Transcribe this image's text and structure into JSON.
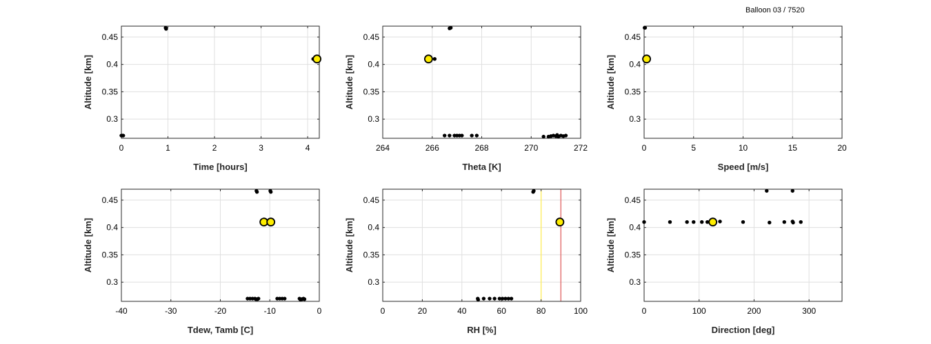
{
  "figure_title": "Balloon 03 / 7520",
  "chart_data": [
    {
      "type": "scatter",
      "xlabel": "Time [hours]",
      "ylabel": "Altitude [km]",
      "xlim": [
        0,
        4.25
      ],
      "ylim": [
        0.265,
        0.47
      ],
      "xticks": [
        0,
        1,
        2,
        3,
        4
      ],
      "yticks": [
        0.3,
        0.35,
        0.4,
        0.45
      ],
      "grid": true,
      "points": [
        [
          0.0,
          0.27
        ],
        [
          0.02,
          0.27
        ],
        [
          0.04,
          0.27
        ],
        [
          0.95,
          0.467
        ],
        [
          0.96,
          0.465
        ],
        [
          4.12,
          0.41
        ],
        [
          4.15,
          0.41
        ]
      ],
      "highlight": [
        [
          4.2,
          0.41
        ]
      ],
      "highlight_color": "#ffee00"
    },
    {
      "type": "scatter",
      "xlabel": "Theta [K]",
      "ylabel": "Altitude [km]",
      "xlim": [
        264,
        272
      ],
      "ylim": [
        0.265,
        0.47
      ],
      "xticks": [
        264,
        266,
        268,
        270,
        272
      ],
      "yticks": [
        0.3,
        0.35,
        0.4,
        0.45
      ],
      "grid": true,
      "points": [
        [
          265.9,
          0.41
        ],
        [
          266.1,
          0.41
        ],
        [
          266.7,
          0.466
        ],
        [
          266.75,
          0.467
        ],
        [
          266.5,
          0.27
        ],
        [
          266.7,
          0.27
        ],
        [
          266.9,
          0.27
        ],
        [
          267.0,
          0.27
        ],
        [
          267.1,
          0.27
        ],
        [
          267.2,
          0.27
        ],
        [
          267.6,
          0.27
        ],
        [
          267.8,
          0.27
        ],
        [
          270.5,
          0.268
        ],
        [
          270.7,
          0.268
        ],
        [
          270.8,
          0.269
        ],
        [
          270.9,
          0.27
        ],
        [
          271.0,
          0.269
        ],
        [
          271.05,
          0.271
        ],
        [
          271.1,
          0.268
        ],
        [
          271.2,
          0.27
        ],
        [
          271.3,
          0.269
        ],
        [
          271.4,
          0.27
        ]
      ],
      "highlight": [
        [
          265.85,
          0.41
        ]
      ],
      "highlight_color": "#ffee00"
    },
    {
      "type": "scatter",
      "xlabel": "Speed [m/s]",
      "ylabel": "Altitude [km]",
      "xlim": [
        0,
        20
      ],
      "ylim": [
        0.265,
        0.47
      ],
      "xticks": [
        0,
        5,
        10,
        15,
        20
      ],
      "yticks": [
        0.3,
        0.35,
        0.4,
        0.45
      ],
      "grid": true,
      "points": [
        [
          0.05,
          0.467
        ],
        [
          0.1,
          0.467
        ],
        [
          0.0,
          0.41
        ],
        [
          0.1,
          0.41
        ]
      ],
      "highlight": [
        [
          0.25,
          0.41
        ]
      ],
      "highlight_color": "#ffee00"
    },
    {
      "type": "scatter",
      "xlabel": "Tdew, Tamb [C]",
      "ylabel": "Altitude [km]",
      "xlim": [
        -40,
        0
      ],
      "ylim": [
        0.265,
        0.47
      ],
      "xticks": [
        -40,
        -30,
        -20,
        -10,
        0
      ],
      "yticks": [
        0.3,
        0.35,
        0.4,
        0.45
      ],
      "grid": true,
      "points": [
        [
          -12.7,
          0.467
        ],
        [
          -12.6,
          0.465
        ],
        [
          -9.9,
          0.467
        ],
        [
          -9.8,
          0.465
        ],
        [
          -14.5,
          0.27
        ],
        [
          -14.0,
          0.27
        ],
        [
          -13.5,
          0.27
        ],
        [
          -13.0,
          0.27
        ],
        [
          -12.8,
          0.269
        ],
        [
          -12.5,
          0.269
        ],
        [
          -12.3,
          0.27
        ],
        [
          -8.5,
          0.27
        ],
        [
          -8.0,
          0.27
        ],
        [
          -7.5,
          0.27
        ],
        [
          -7.0,
          0.27
        ],
        [
          -4.0,
          0.27
        ],
        [
          -3.8,
          0.268
        ],
        [
          -3.5,
          0.269
        ],
        [
          -3.2,
          0.27
        ],
        [
          -3.0,
          0.269
        ]
      ],
      "highlight": [
        [
          -11.2,
          0.41
        ],
        [
          -9.8,
          0.41
        ]
      ],
      "highlight_color": "#ffee00"
    },
    {
      "type": "scatter",
      "xlabel": "RH [%]",
      "ylabel": "Altitude [km]",
      "xlim": [
        0,
        100
      ],
      "ylim": [
        0.265,
        0.47
      ],
      "xticks": [
        0,
        20,
        40,
        60,
        80,
        100
      ],
      "yticks": [
        0.3,
        0.35,
        0.4,
        0.45
      ],
      "grid": true,
      "vlines": [
        {
          "x": 80,
          "color": "#ffee55"
        },
        {
          "x": 90,
          "color": "#e06060"
        }
      ],
      "points": [
        [
          76.0,
          0.465
        ],
        [
          76.3,
          0.467
        ],
        [
          48.0,
          0.27
        ],
        [
          48.2,
          0.268
        ],
        [
          51.0,
          0.27
        ],
        [
          54.0,
          0.27
        ],
        [
          56.5,
          0.27
        ],
        [
          59.0,
          0.27
        ],
        [
          60.5,
          0.27
        ],
        [
          62.0,
          0.27
        ],
        [
          63.5,
          0.27
        ],
        [
          65.0,
          0.27
        ]
      ],
      "highlight": [
        [
          89.5,
          0.41
        ]
      ],
      "highlight_color": "#ffee00"
    },
    {
      "type": "scatter",
      "xlabel": "Direction [deg]",
      "ylabel": "Altitude [km]",
      "xlim": [
        0,
        360
      ],
      "ylim": [
        0.265,
        0.47
      ],
      "xticks": [
        0,
        100,
        200,
        300
      ],
      "yticks": [
        0.3,
        0.35,
        0.4,
        0.45
      ],
      "grid": true,
      "points": [
        [
          0,
          0.41
        ],
        [
          47,
          0.41
        ],
        [
          78,
          0.41
        ],
        [
          90,
          0.41
        ],
        [
          105,
          0.41
        ],
        [
          115,
          0.41
        ],
        [
          138,
          0.411
        ],
        [
          180,
          0.41
        ],
        [
          228,
          0.409
        ],
        [
          255,
          0.41
        ],
        [
          270,
          0.411
        ],
        [
          271,
          0.409
        ],
        [
          285,
          0.41
        ],
        [
          223,
          0.467
        ],
        [
          270,
          0.467
        ]
      ],
      "highlight": [
        [
          125,
          0.41
        ]
      ],
      "highlight_color": "#ffee00"
    }
  ]
}
